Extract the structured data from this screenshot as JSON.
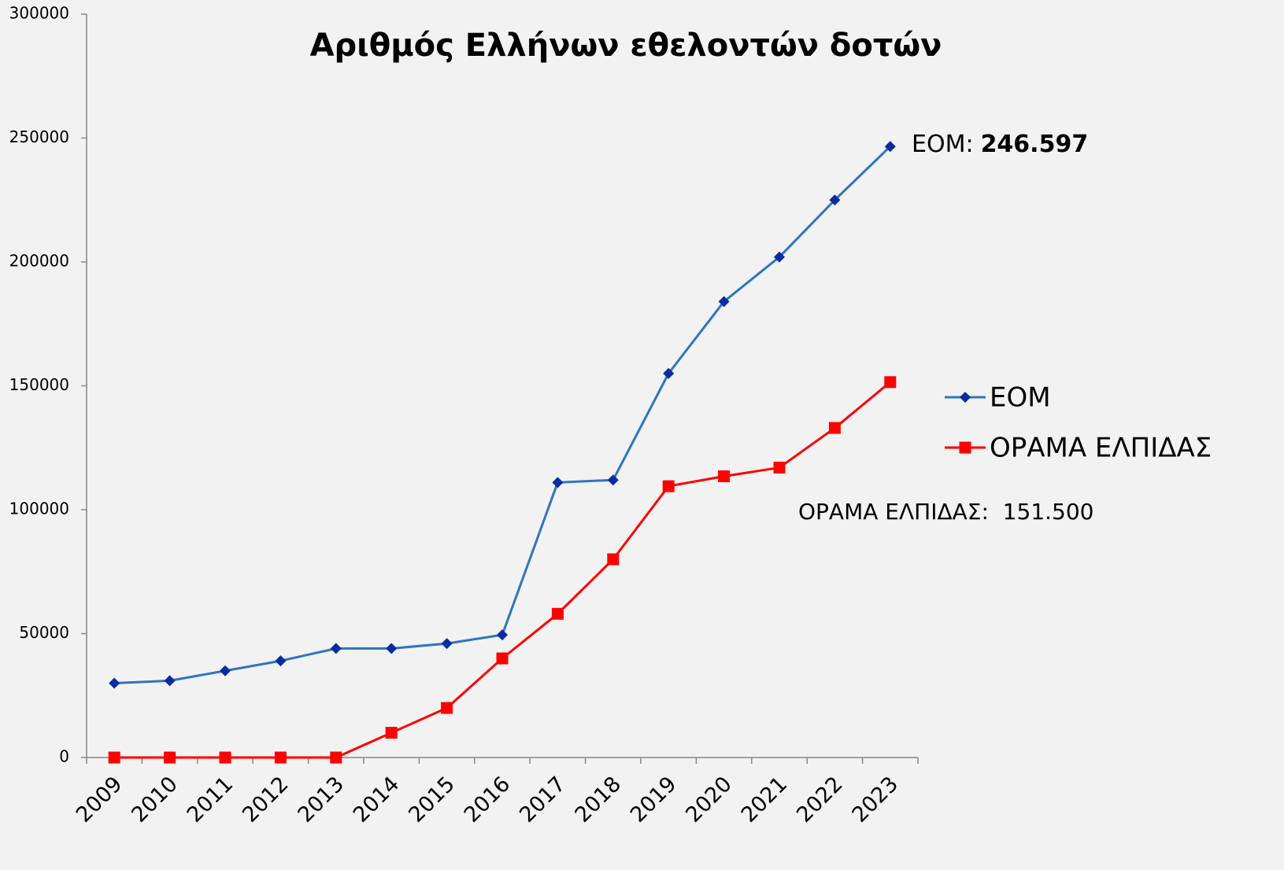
{
  "chart_data": {
    "type": "line",
    "title": "Αριθμός Ελλήνων εθελοντών δοτών",
    "categories": [
      "2009",
      "2010",
      "2011",
      "2012",
      "2013",
      "2014",
      "2015",
      "2016",
      "2017",
      "2018",
      "2019",
      "2020",
      "2021",
      "2022",
      "2023"
    ],
    "series": [
      {
        "name": "ΕΟΜ",
        "color": "#2e75c0",
        "marker_color": "#0a2ca0",
        "marker": "diamond",
        "values": [
          30000,
          31000,
          35000,
          39000,
          44000,
          44000,
          46000,
          49500,
          111000,
          112000,
          155000,
          184000,
          202000,
          225000,
          246597
        ]
      },
      {
        "name": "ΟΡΑΜΑ ΕΛΠΙΔΑΣ",
        "color": "#ff0000",
        "marker_color": "#ff0000",
        "marker": "square",
        "values": [
          0,
          0,
          0,
          0,
          0,
          10000,
          20000,
          40000,
          58000,
          80000,
          109500,
          113500,
          117000,
          133000,
          151500
        ]
      }
    ],
    "ylim": [
      0,
      300000
    ],
    "yticks": [
      0,
      50000,
      100000,
      150000,
      200000,
      250000,
      300000
    ],
    "grid": false,
    "legend": "right",
    "annotations": [
      {
        "text": "ΕΟΜ:",
        "bold": false
      },
      {
        "text": "246.597",
        "bold": true
      },
      {
        "text": "ΟΡΑΜΑ ΕΛΠΙΔΑΣ:  151.500",
        "bold": false
      }
    ]
  }
}
